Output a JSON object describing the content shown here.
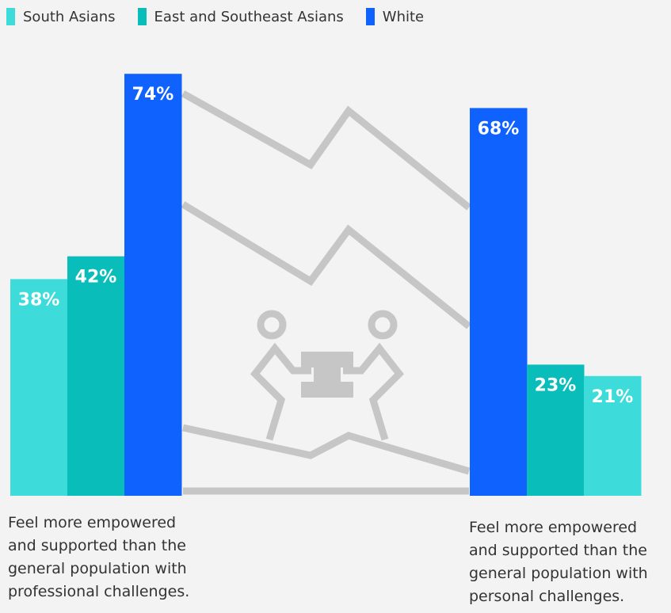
{
  "legend": [
    {
      "label": "South Asians",
      "color": "#3ddbd9"
    },
    {
      "label": "East and Southeast Asians",
      "color": "#08bdba"
    },
    {
      "label": "White",
      "color": "#0f62fe"
    }
  ],
  "chart_data": {
    "type": "bar",
    "categories": [
      "Feel more empowered and supported than the general population with professional challenges.",
      "Feel more empowered and supported than the general population with personal challenges."
    ],
    "series": [
      {
        "name": "South Asians",
        "values": [
          38,
          21
        ],
        "labels": [
          "38%",
          "21%"
        ],
        "color": "#3ddbd9"
      },
      {
        "name": "East and Southeast Asians",
        "values": [
          42,
          23
        ],
        "labels": [
          "42%",
          "23%"
        ],
        "color": "#08bdba"
      },
      {
        "name": "White",
        "values": [
          74,
          68
        ],
        "labels": [
          "74%",
          "68%"
        ],
        "color": "#0f62fe"
      }
    ],
    "bar_order": [
      [
        "South Asians",
        "East and Southeast Asians",
        "White"
      ],
      [
        "White",
        "East and Southeast Asians",
        "South Asians"
      ]
    ],
    "unit": "%",
    "grid": false,
    "legend_position": "top-left"
  },
  "captions": [
    [
      "Feel more empowered",
      "and supported than the",
      "general population with",
      "professional challenges."
    ],
    [
      "Feel more empowered",
      "and supported than the",
      "general population with",
      "personal challenges."
    ]
  ],
  "illustration": {
    "icon": "two-people-lifting-block-icon",
    "color": "#c6c6c6"
  }
}
